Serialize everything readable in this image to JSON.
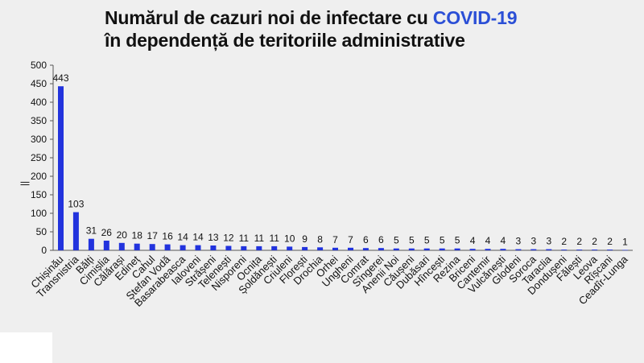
{
  "title": {
    "line1_prefix": "Numărul de cazuri noi de infectare cu ",
    "line1_accent": "COVID-19",
    "line2": "în dependență de teritoriile administrative"
  },
  "colors": {
    "bar": "#2233dd",
    "accent": "#2b4fd6",
    "background": "#efefef"
  },
  "chart_data": {
    "type": "bar",
    "ylabel": "||",
    "ylim": [
      0,
      500
    ],
    "yticks": [
      0,
      50,
      100,
      150,
      200,
      250,
      300,
      350,
      400,
      450,
      500
    ],
    "grid": false,
    "categories": [
      "Chișinău",
      "Transnistria",
      "Bălți",
      "Cimișlia",
      "Călărași",
      "Edineț",
      "Cahul",
      "Ștefan Vodă",
      "Basarabeasca",
      "Ialoveni",
      "Strășeni",
      "Telenești",
      "Nisporeni",
      "Ocnița",
      "Șoldănești",
      "Criuleni",
      "Florești",
      "Drochia",
      "Orhei",
      "Ungheni",
      "Comrat",
      "Sîngerei",
      "Anenii Noi",
      "Căușeni",
      "Dubăsari",
      "Hîncești",
      "Rezina",
      "Briceni",
      "Cantemir",
      "Vulcănești",
      "Glodeni",
      "Soroca",
      "Taraclia",
      "Dondușeni",
      "Fălești",
      "Leova",
      "Rîșcani",
      "Ceadîr-Lunga"
    ],
    "values": [
      443,
      103,
      31,
      26,
      20,
      18,
      17,
      16,
      14,
      14,
      13,
      12,
      11,
      11,
      11,
      10,
      9,
      8,
      7,
      7,
      6,
      6,
      5,
      5,
      5,
      5,
      5,
      4,
      4,
      4,
      3,
      3,
      3,
      2,
      2,
      2,
      2,
      1
    ],
    "data_labels": [
      "443",
      "103",
      "31",
      "26",
      "20",
      "18",
      "17",
      "16",
      "14",
      "14",
      "13",
      "12",
      "11",
      "11",
      "11",
      "10",
      "9",
      "8",
      "7",
      "7",
      "6",
      "6",
      "5",
      "5",
      "5",
      "5",
      "5",
      "4",
      "4",
      "4",
      "3",
      "3",
      "3",
      "2",
      "2",
      "2",
      "2",
      "1"
    ]
  }
}
